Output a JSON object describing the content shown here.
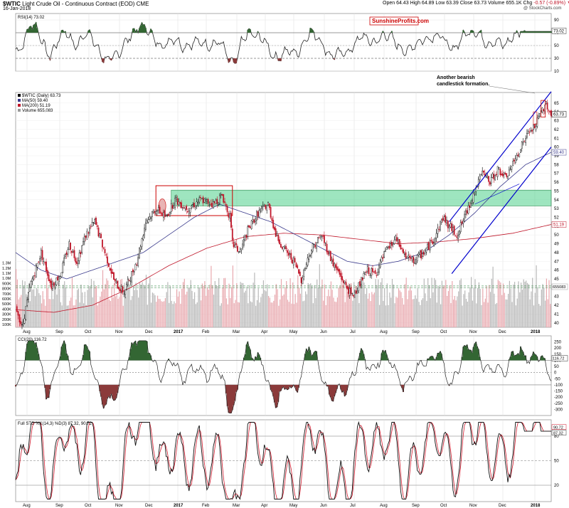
{
  "header": {
    "symbol": "$WTIC",
    "name": "Light Crude Oil - Continuous Contract (EOD)",
    "exchange": "CME",
    "date": "16-Jan-2018",
    "quote": {
      "open_label": "Open",
      "open": "64.43",
      "high_label": "High",
      "high": "64.89",
      "low_label": "Low",
      "low": "63.39",
      "close_label": "Close",
      "close": "63.73",
      "volume_label": "Volume",
      "volume": "655.1K",
      "chg_label": "Chg",
      "chg": "-0.57 (-0.89%)"
    },
    "copyright": "@ StockCharts.com",
    "brand": "SunshineProfits.com"
  },
  "colors": {
    "up": "#000000",
    "down": "#c0182b",
    "ma50": "#3a3a8c",
    "ma200": "#c0182b",
    "channel": "#0000cc",
    "zone_fill": "#4fd08a",
    "rect": "#cc0000",
    "area_green": "#336633",
    "area_red": "#8b3a3a",
    "vol_up": "#b8b8b8",
    "vol_down": "#e8a8ae"
  },
  "chart_data": [
    {
      "type": "line",
      "title": "RSI(14) 73.02",
      "series": [
        {
          "name": "RSI(14)",
          "last": 73.02
        }
      ],
      "ylim": [
        10,
        100
      ],
      "yticks": [
        90,
        70,
        50,
        30,
        10
      ],
      "levels": [
        70,
        30
      ]
    },
    {
      "type": "candlestick",
      "title": "$WTIC (Daily) 63.73",
      "legend": [
        {
          "name": "$WTIC (Daily) 63.73"
        },
        {
          "name": "MA(50) 59.40"
        },
        {
          "name": "MA(200) 51.19"
        },
        {
          "name": "Volume 655,083"
        }
      ],
      "x_months": [
        "Aug",
        "Sep",
        "Oct",
        "Nov",
        "Dec",
        "2017",
        "Feb",
        "Mar",
        "Apr",
        "May",
        "Jun",
        "Jul",
        "Aug",
        "Sep",
        "Oct",
        "Nov",
        "Dec",
        "2018"
      ],
      "ylim": [
        39.5,
        66.2
      ],
      "yticks": [
        40,
        41,
        42,
        43,
        44,
        45,
        46,
        47,
        48,
        49,
        50,
        51,
        52,
        53,
        54,
        55,
        56,
        57,
        58,
        59,
        60,
        61,
        62,
        63,
        64,
        65
      ],
      "volume_ticks": [
        "100K",
        "200K",
        "300K",
        "400K",
        "500K",
        "600K",
        "700K",
        "800K",
        "900K",
        "1.0M",
        "1.1M",
        "1.2M",
        "1.3M"
      ],
      "last_labels": {
        "close": "63.73",
        "ma50": "59.40",
        "ma200": "51.19",
        "volume": "655083"
      },
      "price_path": [
        [
          0,
          42.0
        ],
        [
          5,
          39.5
        ],
        [
          12,
          44.5
        ],
        [
          20,
          48.0
        ],
        [
          28,
          44.2
        ],
        [
          35,
          45.5
        ],
        [
          42,
          49.0
        ],
        [
          48,
          47.0
        ],
        [
          55,
          50.0
        ],
        [
          62,
          51.5
        ],
        [
          70,
          48.0
        ],
        [
          78,
          44.5
        ],
        [
          85,
          43.5
        ],
        [
          95,
          47.0
        ],
        [
          102,
          51.5
        ],
        [
          110,
          53.0
        ],
        [
          118,
          52.0
        ],
        [
          125,
          54.0
        ],
        [
          135,
          53.0
        ],
        [
          145,
          54.0
        ],
        [
          155,
          53.5
        ],
        [
          162,
          54.5
        ],
        [
          168,
          52.0
        ],
        [
          170,
          49.0
        ],
        [
          176,
          48.0
        ],
        [
          182,
          50.5
        ],
        [
          190,
          52.5
        ],
        [
          198,
          53.5
        ],
        [
          204,
          50.0
        ],
        [
          210,
          48.5
        ],
        [
          218,
          47.0
        ],
        [
          224,
          45.0
        ],
        [
          232,
          48.5
        ],
        [
          240,
          50.0
        ],
        [
          248,
          47.0
        ],
        [
          256,
          45.0
        ],
        [
          264,
          43.0
        ],
        [
          270,
          44.5
        ],
        [
          276,
          46.0
        ],
        [
          282,
          45.5
        ],
        [
          290,
          48.0
        ],
        [
          298,
          49.5
        ],
        [
          306,
          47.5
        ],
        [
          312,
          47.0
        ],
        [
          320,
          48.0
        ],
        [
          328,
          49.5
        ],
        [
          335,
          52.0
        ],
        [
          340,
          51.0
        ],
        [
          346,
          50.0
        ],
        [
          352,
          52.0
        ],
        [
          360,
          55.0
        ],
        [
          366,
          57.0
        ],
        [
          372,
          56.0
        ],
        [
          378,
          57.5
        ],
        [
          384,
          56.5
        ],
        [
          390,
          58.0
        ],
        [
          396,
          60.0
        ],
        [
          402,
          61.5
        ],
        [
          408,
          62.5
        ],
        [
          412,
          64.0
        ],
        [
          416,
          65.0
        ],
        [
          420,
          63.7
        ]
      ],
      "ma50_path": [
        [
          0,
          48.0
        ],
        [
          20,
          46.0
        ],
        [
          40,
          45.0
        ],
        [
          60,
          46.0
        ],
        [
          80,
          47.0
        ],
        [
          100,
          48.0
        ],
        [
          120,
          50.0
        ],
        [
          140,
          52.0
        ],
        [
          160,
          53.5
        ],
        [
          180,
          52.5
        ],
        [
          200,
          51.5
        ],
        [
          220,
          50.0
        ],
        [
          240,
          48.5
        ],
        [
          260,
          47.0
        ],
        [
          280,
          46.5
        ],
        [
          300,
          47.0
        ],
        [
          320,
          48.0
        ],
        [
          340,
          50.0
        ],
        [
          360,
          52.5
        ],
        [
          380,
          55.5
        ],
        [
          400,
          58.0
        ],
        [
          420,
          59.4
        ]
      ],
      "ma200_path": [
        [
          0,
          41.5
        ],
        [
          30,
          41.2
        ],
        [
          60,
          42.0
        ],
        [
          90,
          44.0
        ],
        [
          120,
          46.5
        ],
        [
          150,
          48.5
        ],
        [
          180,
          49.8
        ],
        [
          210,
          50.2
        ],
        [
          240,
          50.0
        ],
        [
          270,
          49.5
        ],
        [
          300,
          49.0
        ],
        [
          330,
          49.2
        ],
        [
          360,
          49.6
        ],
        [
          390,
          50.2
        ],
        [
          420,
          51.19
        ]
      ],
      "annotations": [
        "Another bearish",
        "candlestick formation."
      ]
    },
    {
      "type": "area",
      "title": "CCI(20) 116.72",
      "series": [
        {
          "name": "CCI(20)",
          "last": 116.72
        }
      ],
      "ylim": [
        -350,
        300
      ],
      "yticks": [
        250,
        200,
        150,
        100,
        50,
        0,
        -50,
        -100,
        -150,
        -200,
        -250,
        -300
      ],
      "levels": [
        100,
        0,
        -100
      ],
      "last_label": "116.72"
    },
    {
      "type": "line",
      "title": "Full STO %K(14,3) %D(3) 87.32, 90.72",
      "series": [
        {
          "name": "%K(14,3)",
          "last": 87.32
        },
        {
          "name": "%D(3)",
          "last": 90.72
        }
      ],
      "ylim": [
        0,
        100
      ],
      "yticks": [
        80,
        50,
        20
      ],
      "levels": [
        80,
        50,
        20
      ],
      "last_labels": [
        "90.72",
        "87.32"
      ]
    }
  ]
}
